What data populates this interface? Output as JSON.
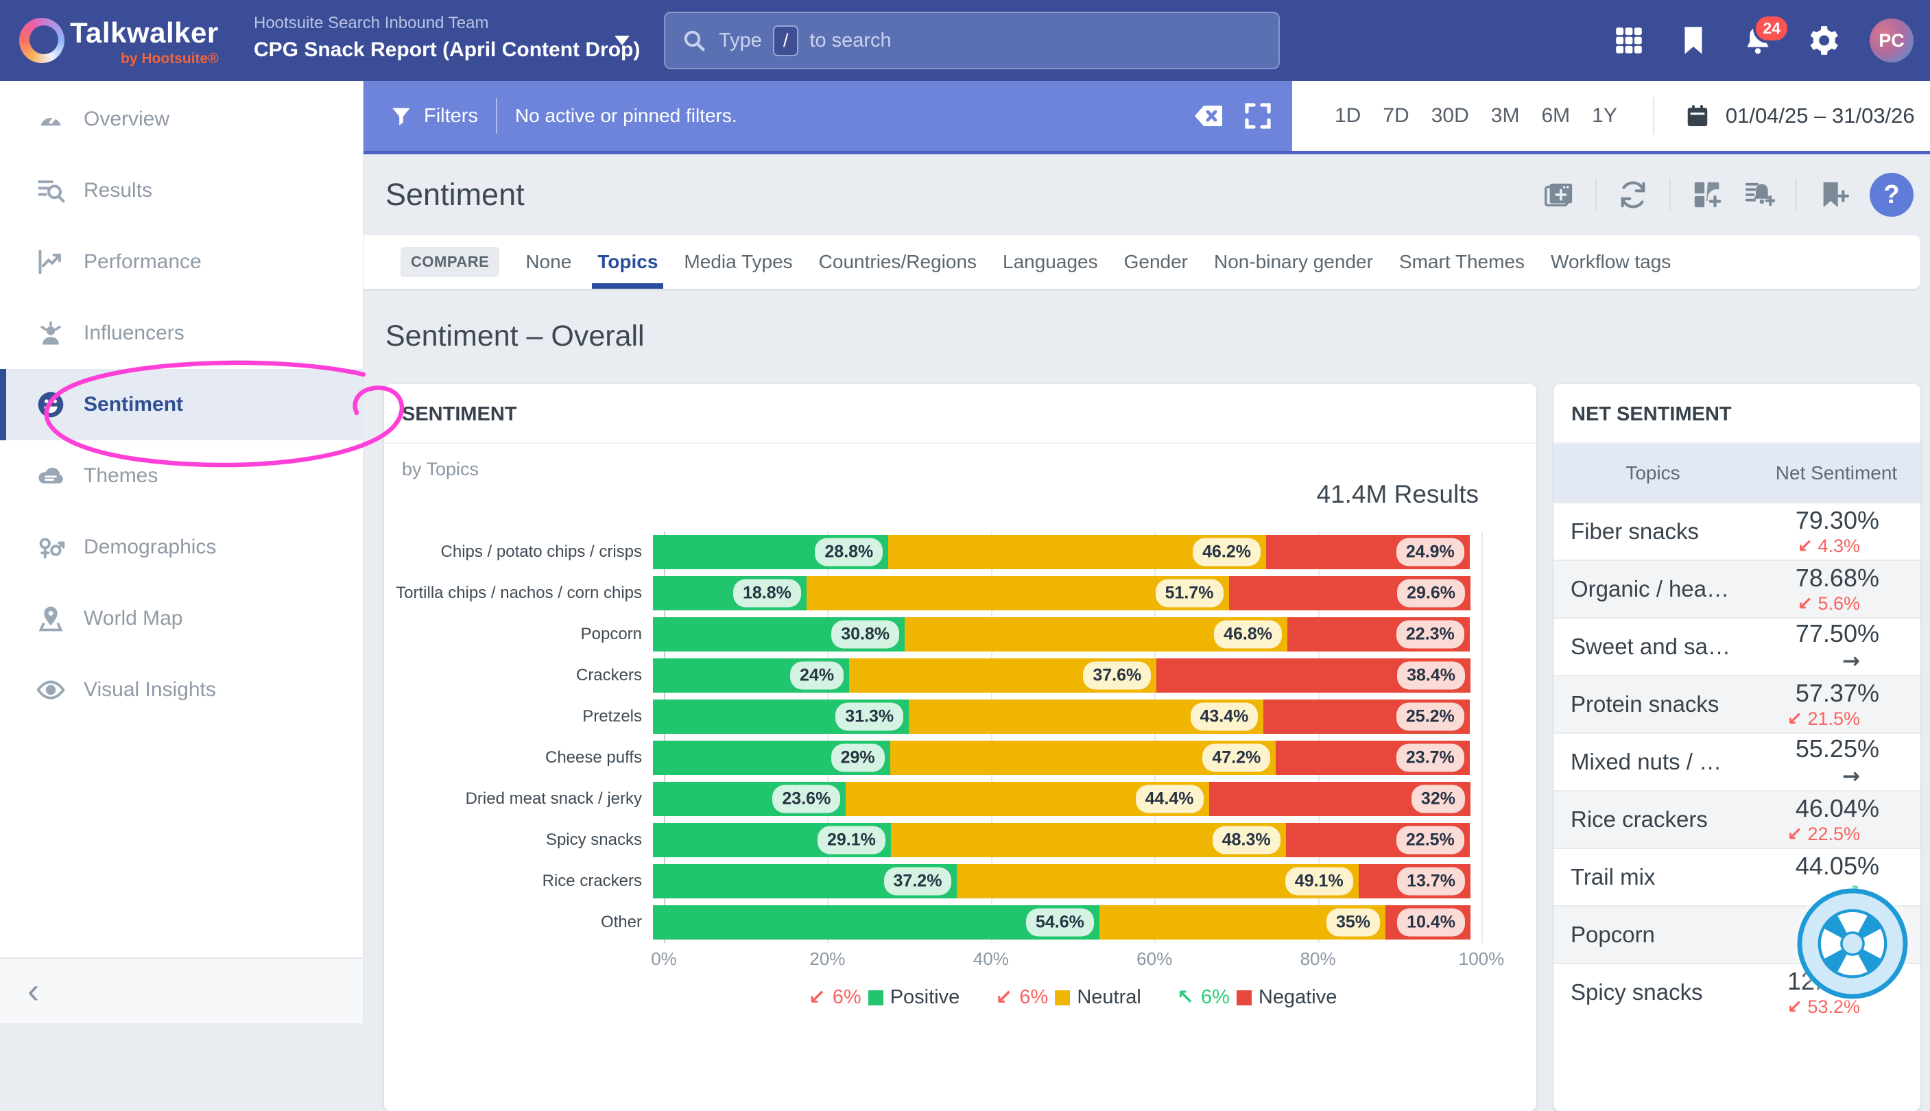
{
  "topbar": {
    "brand": {
      "name": "Talkwalker",
      "byline": "by Hootsuite®"
    },
    "project": {
      "team": "Hootsuite Search Inbound Team",
      "report": "CPG Snack Report (April Content Drop)"
    },
    "search": {
      "prefix": "Type",
      "key": "/",
      "suffix": "to search"
    },
    "notifications_badge": "24",
    "avatar_initials": "PC"
  },
  "filters_bar": {
    "label": "Filters",
    "status": "No active or pinned filters."
  },
  "date_controls": {
    "ranges": [
      "1D",
      "7D",
      "30D",
      "3M",
      "6M",
      "1Y"
    ],
    "range_display": "01/04/25 – 31/03/26"
  },
  "sidebar": {
    "items": [
      {
        "label": "Overview",
        "active": false
      },
      {
        "label": "Results",
        "active": false
      },
      {
        "label": "Performance",
        "active": false
      },
      {
        "label": "Influencers",
        "active": false
      },
      {
        "label": "Sentiment",
        "active": true
      },
      {
        "label": "Themes",
        "active": false
      },
      {
        "label": "Demographics",
        "active": false
      },
      {
        "label": "World Map",
        "active": false
      },
      {
        "label": "Visual Insights",
        "active": false
      }
    ]
  },
  "page": {
    "title": "Sentiment",
    "help_label": "?"
  },
  "tabs": {
    "compare_label": "COMPARE",
    "active": "Topics",
    "items": [
      "None",
      "Topics",
      "Media Types",
      "Countries/Regions",
      "Languages",
      "Gender",
      "Non-binary gender",
      "Smart Themes",
      "Workflow tags"
    ]
  },
  "section": {
    "title": "Sentiment – Overall"
  },
  "chart_card": {
    "title": "SENTIMENT",
    "subtitle": "by Topics",
    "results_label": "41.4M Results"
  },
  "chart_data": {
    "type": "bar",
    "stacked": true,
    "orientation": "horizontal",
    "title": "Sentiment by Topics",
    "results_total": "41.4M Results",
    "categories": [
      "Chips / potato chips / crisps",
      "Tortilla chips / nachos / corn chips",
      "Popcorn",
      "Crackers",
      "Pretzels",
      "Cheese puffs",
      "Dried meat snack / jerky",
      "Spicy snacks",
      "Rice crackers",
      "Other"
    ],
    "series": [
      {
        "key": "pos",
        "name": "Positive",
        "color": "#21c56d",
        "values": [
          28.8,
          18.8,
          30.8,
          24,
          31.3,
          29,
          23.6,
          29.1,
          37.2,
          54.6
        ],
        "labels": [
          "28.8%",
          "18.8%",
          "30.8%",
          "24%",
          "31.3%",
          "29%",
          "23.6%",
          "29.1%",
          "37.2%",
          "54.6%"
        ]
      },
      {
        "key": "neu",
        "name": "Neutral",
        "color": "#f0b500",
        "values": [
          46.2,
          51.7,
          46.8,
          37.6,
          43.4,
          47.2,
          44.4,
          48.3,
          49.1,
          35
        ],
        "labels": [
          "46.2%",
          "51.7%",
          "46.8%",
          "37.6%",
          "43.4%",
          "47.2%",
          "44.4%",
          "48.3%",
          "49.1%",
          "35%"
        ]
      },
      {
        "key": "neg",
        "name": "Negative",
        "color": "#e8483b",
        "values": [
          24.9,
          29.6,
          22.3,
          38.4,
          25.2,
          23.7,
          32,
          22.5,
          13.7,
          10.4
        ],
        "labels": [
          "24.9%",
          "29.6%",
          "22.3%",
          "38.4%",
          "25.2%",
          "23.7%",
          "32%",
          "22.5%",
          "13.7%",
          "10.4%"
        ]
      }
    ],
    "xlim": [
      0,
      100
    ],
    "x_ticks": [
      "0%",
      "20%",
      "40%",
      "60%",
      "80%",
      "100%"
    ],
    "grid": true,
    "legend_position": "bottom",
    "legend": [
      {
        "arrow": "↙",
        "direction": "down",
        "change": "6%",
        "name": "Positive",
        "color": "#21c56d"
      },
      {
        "arrow": "↙",
        "direction": "down",
        "change": "6%",
        "name": "Neutral",
        "color": "#f0b500"
      },
      {
        "arrow": "↖",
        "direction": "up",
        "change": "6%",
        "name": "Negative",
        "color": "#e8483b"
      }
    ]
  },
  "net_sentiment": {
    "title": "NET SENTIMENT",
    "columns": [
      "Topics",
      "Net Sentiment"
    ],
    "trend_arrows": {
      "down": "↙",
      "up": "↗",
      "flat": "→"
    },
    "rows": [
      {
        "topic": "Fiber snacks",
        "value": "79.30%",
        "change": "4.3%",
        "trend": "down"
      },
      {
        "topic": "Organic / hea…",
        "value": "78.68%",
        "change": "5.6%",
        "trend": "down"
      },
      {
        "topic": "Sweet and sa…",
        "value": "77.50%",
        "change": "",
        "trend": "flat"
      },
      {
        "topic": "Protein snacks",
        "value": "57.37%",
        "change": "21.5%",
        "trend": "down"
      },
      {
        "topic": "Mixed nuts / …",
        "value": "55.25%",
        "change": "",
        "trend": "flat"
      },
      {
        "topic": "Rice crackers",
        "value": "46.04%",
        "change": "22.5%",
        "trend": "down"
      },
      {
        "topic": "Trail mix",
        "value": "44.05%",
        "change": "",
        "trend": "up"
      },
      {
        "topic": "Popcorn",
        "value": "",
        "change": "",
        "trend": "none"
      },
      {
        "topic": "Spicy snacks",
        "value": "12.",
        "value_suffix": "%",
        "change": "53.2%",
        "trend": "down"
      }
    ]
  },
  "colors": {
    "positive": "#21c56d",
    "neutral": "#f0b500",
    "negative": "#e8483b",
    "trend_down": "#f9625f",
    "trend_up": "#2bcd7e",
    "accent_blue": "#2b4d9e"
  }
}
